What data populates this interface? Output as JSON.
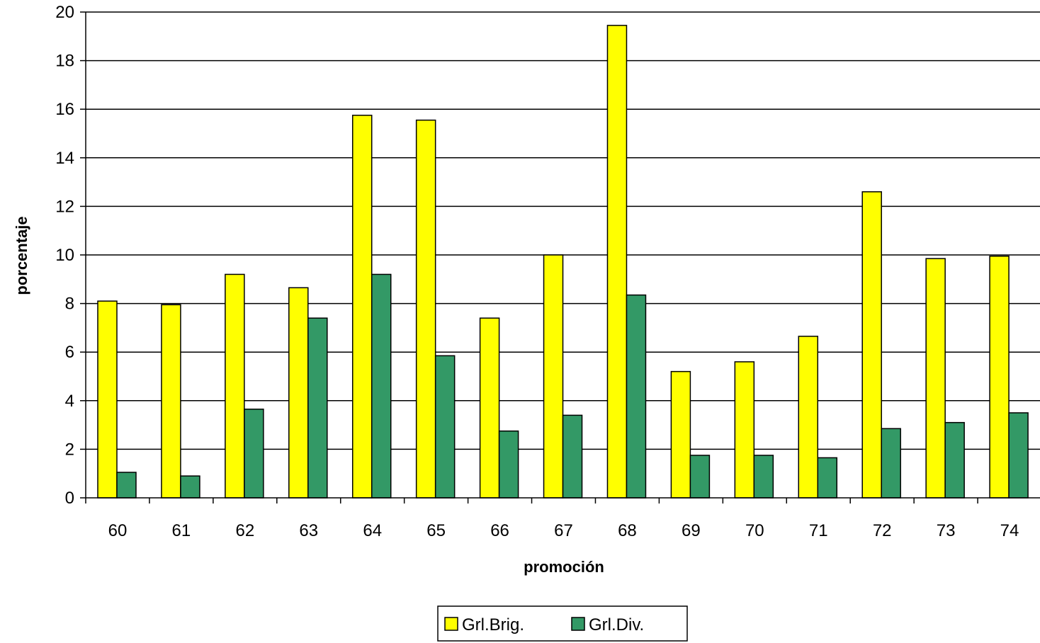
{
  "chart_data": {
    "type": "bar",
    "title": "",
    "xlabel": "promoción",
    "ylabel": "porcentaje",
    "categories": [
      "60",
      "61",
      "62",
      "63",
      "64",
      "65",
      "66",
      "67",
      "68",
      "69",
      "70",
      "71",
      "72",
      "73",
      "74"
    ],
    "series": [
      {
        "name": "Grl.Brig.",
        "color": "#FFFF00",
        "values": [
          8.1,
          7.95,
          9.2,
          8.65,
          15.75,
          15.55,
          7.4,
          10.0,
          19.45,
          5.2,
          5.6,
          6.65,
          12.6,
          9.85,
          9.95
        ]
      },
      {
        "name": "Grl.Div.",
        "color": "#339966",
        "values": [
          1.05,
          0.9,
          3.65,
          7.4,
          9.2,
          5.85,
          2.75,
          3.4,
          8.35,
          1.75,
          1.75,
          1.65,
          2.85,
          3.1,
          3.5
        ]
      }
    ],
    "ylim": [
      0,
      20
    ],
    "yticks": [
      0,
      2,
      4,
      6,
      8,
      10,
      12,
      14,
      16,
      18,
      20
    ],
    "grid": true,
    "legend_position": "bottom-center"
  }
}
